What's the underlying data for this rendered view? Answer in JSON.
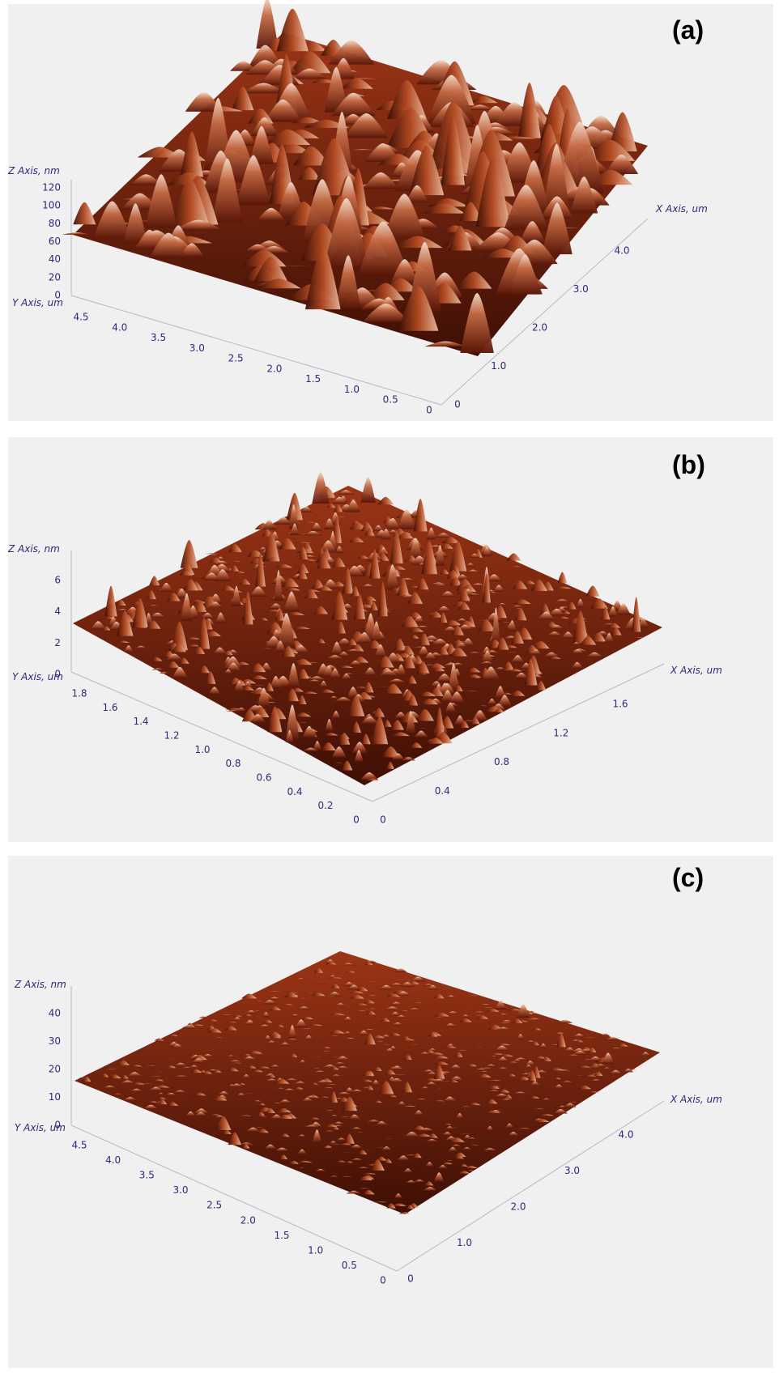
{
  "panels": [
    {
      "label": "(a)",
      "z_axis_title": "Z Axis, nm",
      "y_axis_title": "Y Axis, um",
      "x_axis_title": "X Axis, um",
      "z_ticks": [
        "0",
        "20",
        "40",
        "60",
        "80",
        "100",
        "120"
      ],
      "y_ticks": [
        "4.5",
        "4.0",
        "3.5",
        "3.0",
        "2.5",
        "2.0",
        "1.5",
        "1.0",
        "0.5",
        "0"
      ],
      "x_ticks": [
        "0",
        "1.0",
        "2.0",
        "3.0",
        "4.0"
      ]
    },
    {
      "label": "(b)",
      "z_axis_title": "Z Axis, nm",
      "y_axis_title": "Y Axis, um",
      "x_axis_title": "X Axis, um",
      "z_ticks": [
        "0",
        "2",
        "4",
        "6"
      ],
      "y_ticks": [
        "1.8",
        "1.6",
        "1.4",
        "1.2",
        "1.0",
        "0.8",
        "0.6",
        "0.4",
        "0.2",
        "0"
      ],
      "x_ticks": [
        "0",
        "0.4",
        "0.8",
        "1.2",
        "1.6"
      ]
    },
    {
      "label": "(c)",
      "z_axis_title": "Z Axis, nm",
      "y_axis_title": "Y Axis, um",
      "x_axis_title": "X Axis, um",
      "z_ticks": [
        "0",
        "10",
        "20",
        "30",
        "40"
      ],
      "y_ticks": [
        "4.5",
        "4.0",
        "3.5",
        "3.0",
        "2.5",
        "2.0",
        "1.5",
        "1.0",
        "0.5",
        "0"
      ],
      "x_ticks": [
        "0",
        "1.0",
        "2.0",
        "3.0",
        "4.0"
      ]
    }
  ]
}
